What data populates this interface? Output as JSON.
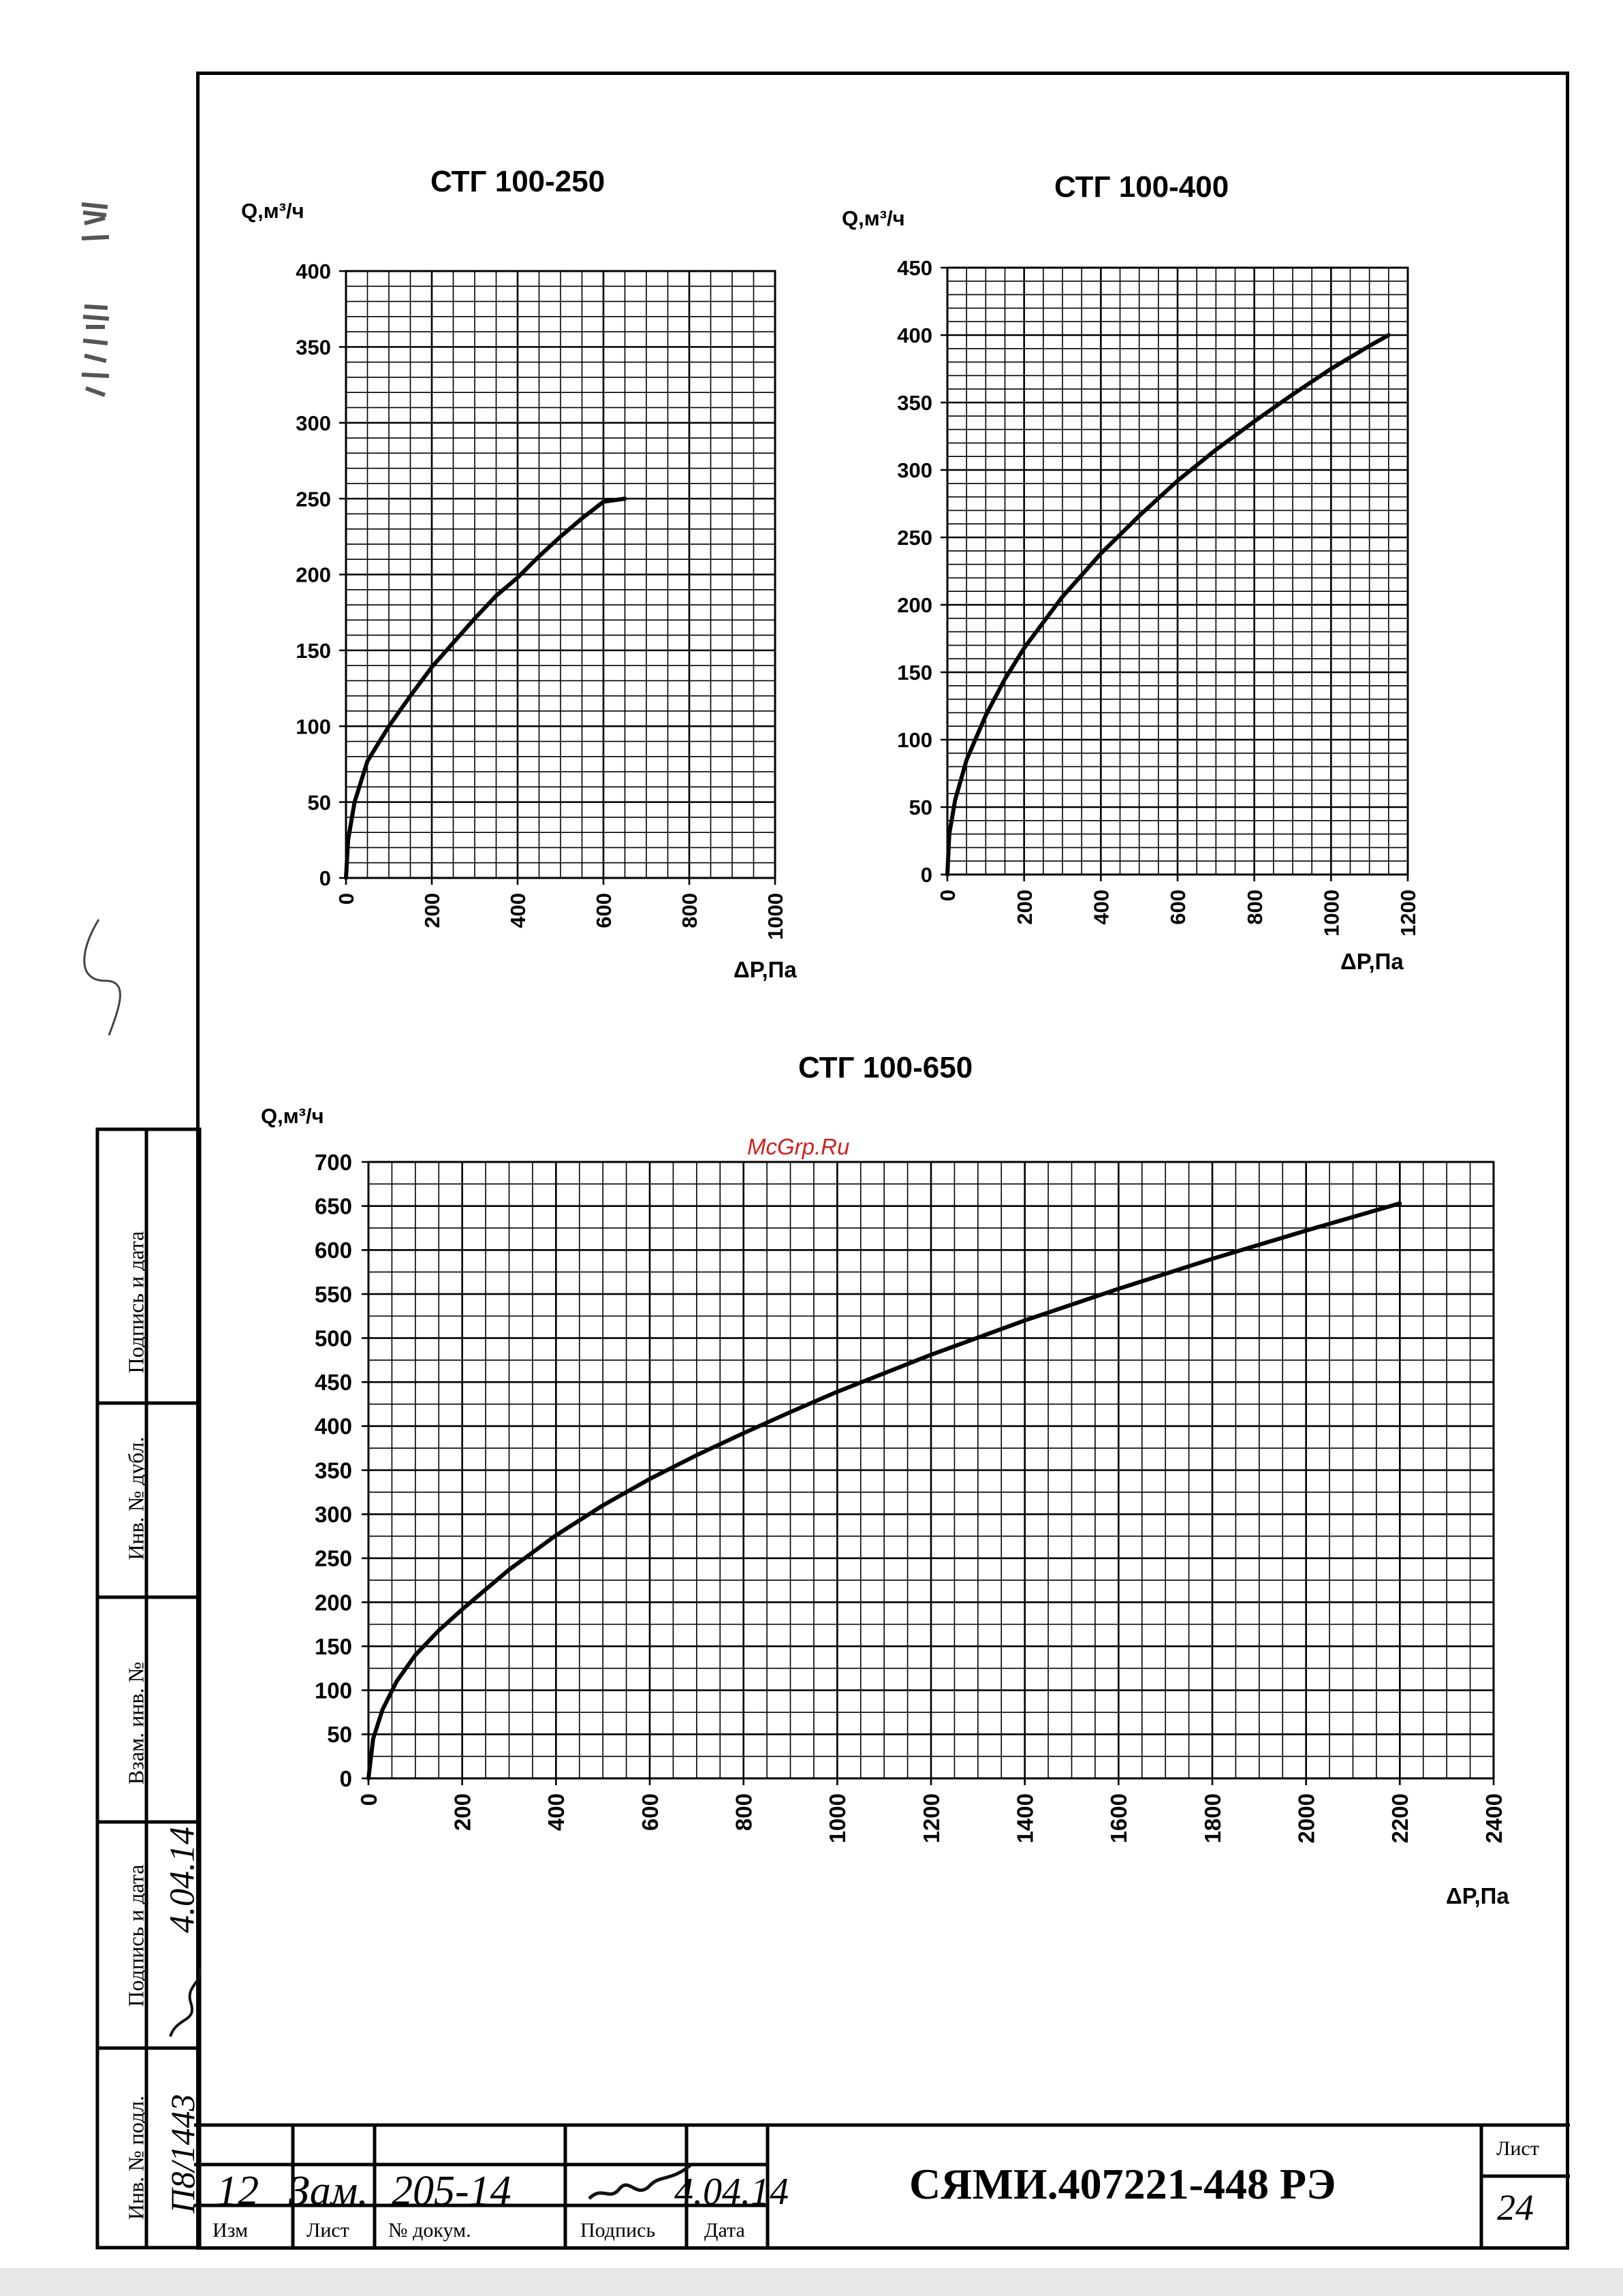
{
  "watermark": "McGrp.Ru",
  "document": {
    "number": "СЯМИ.407221-448 РЭ",
    "sheet_label": "Лист",
    "sheet_number": "24"
  },
  "left_margin": {
    "fields": [
      "Подпись и дата",
      "Инв. № дубл.",
      "Взам. инв. №",
      "Подпись и дата",
      "Инв. № подл."
    ],
    "handwritten_date": "4.04.14",
    "inventory_number": "П8/1443"
  },
  "title_block": {
    "headers": [
      "Изм",
      "Лист",
      "№ докум.",
      "Подпись",
      "Дата"
    ],
    "row": {
      "change": "12",
      "sheet": "Зам.",
      "doc": "205-14",
      "date": "4.04.14"
    }
  },
  "chart_data": [
    {
      "type": "line",
      "title": "СТГ 100-250",
      "ylabel": "Q,м³/ч",
      "xlabel": "ΔP,Па",
      "xlim": [
        0,
        1000
      ],
      "ylim": [
        0,
        400
      ],
      "xticks": [
        0,
        200,
        400,
        600,
        800,
        1000
      ],
      "yticks": [
        0,
        50,
        100,
        150,
        200,
        250,
        300,
        350,
        400
      ],
      "x_minor": 50,
      "y_minor": 10,
      "grid": true,
      "series": [
        {
          "x": [
            0,
            5,
            20,
            50,
            100,
            150,
            200,
            250,
            300,
            350,
            400,
            450,
            500,
            550,
            600,
            650
          ],
          "y": [
            0,
            25,
            50,
            77,
            100,
            120,
            139,
            155,
            171,
            186,
            198,
            212,
            225,
            237,
            248,
            250
          ]
        }
      ]
    },
    {
      "type": "line",
      "title": "СТГ 100-400",
      "ylabel": "Q,м³/ч",
      "xlabel": "ΔP,Па",
      "xlim": [
        0,
        1200
      ],
      "ylim": [
        0,
        450
      ],
      "xticks": [
        0,
        200,
        400,
        600,
        800,
        1000,
        1200
      ],
      "yticks": [
        0,
        50,
        100,
        150,
        200,
        250,
        300,
        350,
        400,
        450
      ],
      "x_minor": 50,
      "y_minor": 10,
      "grid": true,
      "series": [
        {
          "x": [
            0,
            5,
            20,
            50,
            100,
            150,
            200,
            300,
            400,
            500,
            600,
            700,
            800,
            900,
            1000,
            1100,
            1150
          ],
          "y": [
            0,
            30,
            55,
            85,
            118,
            145,
            168,
            206,
            238,
            266,
            292,
            315,
            336,
            356,
            375,
            392,
            400
          ]
        }
      ]
    },
    {
      "type": "line",
      "title": "СТГ 100-650",
      "ylabel": "Q,м³/ч",
      "xlabel": "ΔP,Па",
      "xlim": [
        0,
        2400
      ],
      "ylim": [
        0,
        700
      ],
      "xticks": [
        0,
        200,
        400,
        600,
        800,
        1000,
        1200,
        1400,
        1600,
        1800,
        2000,
        2200,
        2400
      ],
      "yticks": [
        0,
        50,
        100,
        150,
        200,
        250,
        300,
        350,
        400,
        450,
        500,
        550,
        600,
        650,
        700
      ],
      "x_minor": 50,
      "y_minor": 25,
      "grid": true,
      "series": [
        {
          "x": [
            0,
            10,
            30,
            60,
            100,
            150,
            200,
            300,
            400,
            500,
            600,
            700,
            800,
            900,
            1000,
            1200,
            1400,
            1600,
            1800,
            2000,
            2200
          ],
          "y": [
            0,
            45,
            78,
            110,
            140,
            168,
            192,
            237,
            276,
            310,
            340,
            367,
            392,
            416,
            439,
            481,
            520,
            556,
            590,
            622,
            653
          ]
        }
      ]
    }
  ]
}
